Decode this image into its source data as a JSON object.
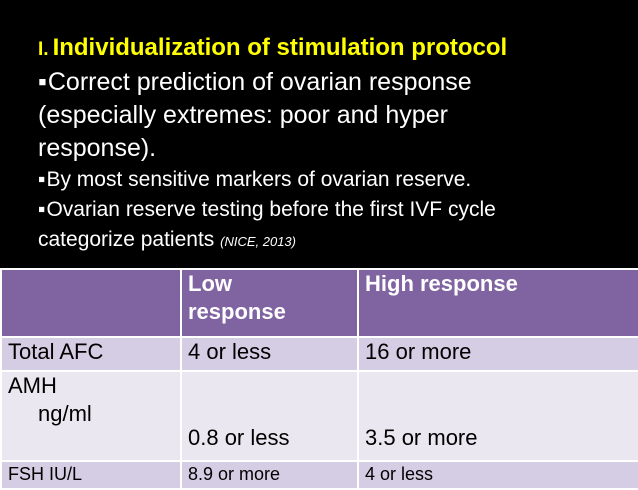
{
  "slide": {
    "title_prefix": "I.",
    "title": "Individualization of stimulation protocol",
    "lines": {
      "l1": "Correct prediction of ovarian response",
      "l2": "(especially extremes: poor and hyper",
      "l3": "response).",
      "l4": "By most sensitive markers of ovarian reserve.",
      "l5": "Ovarian reserve testing before the first IVF cycle",
      "l6": "categorize patients",
      "l6_cite": "(NICE, 2013)"
    }
  },
  "table": {
    "header": {
      "col1": "",
      "col2_line1": "Low",
      "col2_line2": "response",
      "col3": "High response"
    },
    "rows": [
      {
        "label": "Total AFC",
        "low": "4 or less",
        "high": "16 or more"
      },
      {
        "label_line1": "AMH",
        "label_line2": "ng/ml",
        "low": "0.8 or less",
        "high": "3.5 or more"
      },
      {
        "label": "FSH IU/L",
        "low": "8.9 or more",
        "high": "4 or less"
      }
    ]
  },
  "colors": {
    "background": "#000000",
    "title": "#ffff00",
    "text": "#ffffff",
    "table_header": "#8064a2",
    "row_dark": "#d5cde3",
    "row_light": "#ebe7f1"
  }
}
